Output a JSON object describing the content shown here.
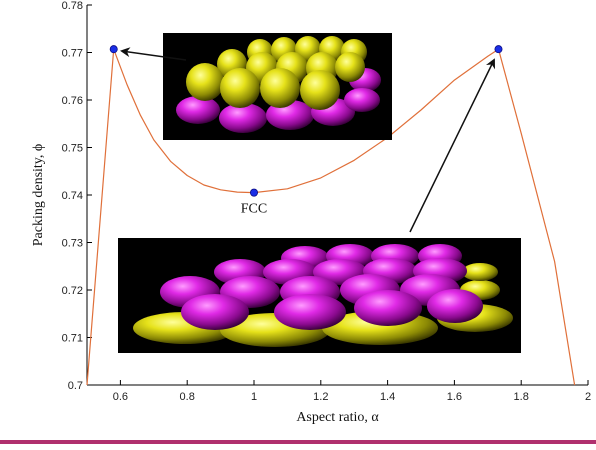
{
  "chart_data": {
    "type": "line",
    "title": "",
    "xlabel": "Aspect ratio, α",
    "ylabel": "Packing density, ϕ",
    "xlim": [
      0.5,
      2.0
    ],
    "ylim": [
      0.7,
      0.78
    ],
    "x_ticks": [
      0.6,
      0.8,
      1,
      1.2,
      1.4,
      1.6,
      1.8,
      2
    ],
    "y_ticks": [
      0.7,
      0.71,
      0.72,
      0.73,
      0.74,
      0.75,
      0.76,
      0.77,
      0.78
    ],
    "grid": false,
    "series": [
      {
        "color": "#e0703a",
        "points": [
          [
            0.5,
            0.7
          ],
          [
            0.58,
            0.7707
          ],
          [
            0.62,
            0.7632
          ],
          [
            0.66,
            0.7568
          ],
          [
            0.7,
            0.7516
          ],
          [
            0.75,
            0.7471
          ],
          [
            0.8,
            0.7441
          ],
          [
            0.85,
            0.7421
          ],
          [
            0.9,
            0.7411
          ],
          [
            0.95,
            0.7406
          ],
          [
            1.0,
            0.7405
          ],
          [
            1.1,
            0.7413
          ],
          [
            1.2,
            0.7436
          ],
          [
            1.3,
            0.7473
          ],
          [
            1.4,
            0.7521
          ],
          [
            1.5,
            0.7579
          ],
          [
            1.6,
            0.7642
          ],
          [
            1.7,
            0.7692
          ],
          [
            1.732,
            0.7707
          ],
          [
            1.8,
            0.753
          ],
          [
            1.9,
            0.726
          ],
          [
            1.96,
            0.7
          ]
        ]
      }
    ],
    "markers": [
      {
        "x": 0.58,
        "y": 0.7707,
        "color": "#1a2ee6"
      },
      {
        "x": 1.0,
        "y": 0.7405,
        "color": "#1a2ee6"
      },
      {
        "x": 1.732,
        "y": 0.7707,
        "color": "#1a2ee6"
      }
    ],
    "annotations": [
      {
        "text": "FCC",
        "x": 1.0,
        "y": 0.7405
      }
    ],
    "insets": [
      {
        "depicts": "oblate ellipsoids (yellow) packed over a magenta layer",
        "points_to": [
          0.58,
          0.7707
        ]
      },
      {
        "depicts": "prolate ellipsoids (magenta) packed over a yellow layer",
        "points_to": [
          1.732,
          0.7707
        ]
      }
    ],
    "colors": {
      "line": "#e0703a",
      "marker": "#1a2ee6",
      "bottom_rule": "#b0306e",
      "inset_bg": "#000000"
    }
  }
}
